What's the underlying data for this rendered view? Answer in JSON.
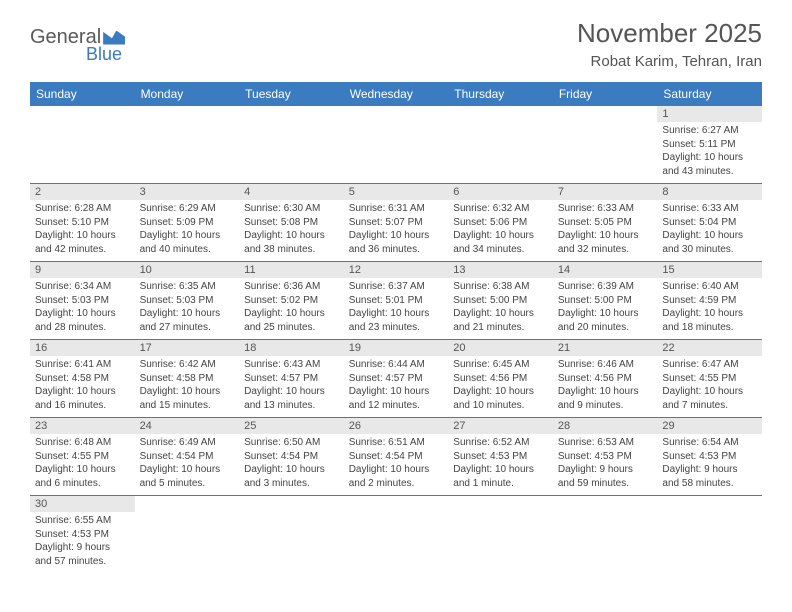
{
  "logo": {
    "part1": "General",
    "part2": "Blue"
  },
  "header": {
    "title": "November 2025",
    "location": "Robat Karim, Tehran, Iran"
  },
  "dayHeaders": [
    "Sunday",
    "Monday",
    "Tuesday",
    "Wednesday",
    "Thursday",
    "Friday",
    "Saturday"
  ],
  "colors": {
    "header_bg": "#3b7bbf",
    "daynum_bg": "#e8e8e8",
    "border": "#3b7bbf",
    "text": "#444444"
  },
  "weeks": [
    {
      "nums": [
        "",
        "",
        "",
        "",
        "",
        "",
        "1"
      ],
      "cells": [
        null,
        null,
        null,
        null,
        null,
        null,
        {
          "sunrise": "Sunrise: 6:27 AM",
          "sunset": "Sunset: 5:11 PM",
          "day1": "Daylight: 10 hours",
          "day2": "and 43 minutes."
        }
      ]
    },
    {
      "nums": [
        "2",
        "3",
        "4",
        "5",
        "6",
        "7",
        "8"
      ],
      "cells": [
        {
          "sunrise": "Sunrise: 6:28 AM",
          "sunset": "Sunset: 5:10 PM",
          "day1": "Daylight: 10 hours",
          "day2": "and 42 minutes."
        },
        {
          "sunrise": "Sunrise: 6:29 AM",
          "sunset": "Sunset: 5:09 PM",
          "day1": "Daylight: 10 hours",
          "day2": "and 40 minutes."
        },
        {
          "sunrise": "Sunrise: 6:30 AM",
          "sunset": "Sunset: 5:08 PM",
          "day1": "Daylight: 10 hours",
          "day2": "and 38 minutes."
        },
        {
          "sunrise": "Sunrise: 6:31 AM",
          "sunset": "Sunset: 5:07 PM",
          "day1": "Daylight: 10 hours",
          "day2": "and 36 minutes."
        },
        {
          "sunrise": "Sunrise: 6:32 AM",
          "sunset": "Sunset: 5:06 PM",
          "day1": "Daylight: 10 hours",
          "day2": "and 34 minutes."
        },
        {
          "sunrise": "Sunrise: 6:33 AM",
          "sunset": "Sunset: 5:05 PM",
          "day1": "Daylight: 10 hours",
          "day2": "and 32 minutes."
        },
        {
          "sunrise": "Sunrise: 6:33 AM",
          "sunset": "Sunset: 5:04 PM",
          "day1": "Daylight: 10 hours",
          "day2": "and 30 minutes."
        }
      ]
    },
    {
      "nums": [
        "9",
        "10",
        "11",
        "12",
        "13",
        "14",
        "15"
      ],
      "cells": [
        {
          "sunrise": "Sunrise: 6:34 AM",
          "sunset": "Sunset: 5:03 PM",
          "day1": "Daylight: 10 hours",
          "day2": "and 28 minutes."
        },
        {
          "sunrise": "Sunrise: 6:35 AM",
          "sunset": "Sunset: 5:03 PM",
          "day1": "Daylight: 10 hours",
          "day2": "and 27 minutes."
        },
        {
          "sunrise": "Sunrise: 6:36 AM",
          "sunset": "Sunset: 5:02 PM",
          "day1": "Daylight: 10 hours",
          "day2": "and 25 minutes."
        },
        {
          "sunrise": "Sunrise: 6:37 AM",
          "sunset": "Sunset: 5:01 PM",
          "day1": "Daylight: 10 hours",
          "day2": "and 23 minutes."
        },
        {
          "sunrise": "Sunrise: 6:38 AM",
          "sunset": "Sunset: 5:00 PM",
          "day1": "Daylight: 10 hours",
          "day2": "and 21 minutes."
        },
        {
          "sunrise": "Sunrise: 6:39 AM",
          "sunset": "Sunset: 5:00 PM",
          "day1": "Daylight: 10 hours",
          "day2": "and 20 minutes."
        },
        {
          "sunrise": "Sunrise: 6:40 AM",
          "sunset": "Sunset: 4:59 PM",
          "day1": "Daylight: 10 hours",
          "day2": "and 18 minutes."
        }
      ]
    },
    {
      "nums": [
        "16",
        "17",
        "18",
        "19",
        "20",
        "21",
        "22"
      ],
      "cells": [
        {
          "sunrise": "Sunrise: 6:41 AM",
          "sunset": "Sunset: 4:58 PM",
          "day1": "Daylight: 10 hours",
          "day2": "and 16 minutes."
        },
        {
          "sunrise": "Sunrise: 6:42 AM",
          "sunset": "Sunset: 4:58 PM",
          "day1": "Daylight: 10 hours",
          "day2": "and 15 minutes."
        },
        {
          "sunrise": "Sunrise: 6:43 AM",
          "sunset": "Sunset: 4:57 PM",
          "day1": "Daylight: 10 hours",
          "day2": "and 13 minutes."
        },
        {
          "sunrise": "Sunrise: 6:44 AM",
          "sunset": "Sunset: 4:57 PM",
          "day1": "Daylight: 10 hours",
          "day2": "and 12 minutes."
        },
        {
          "sunrise": "Sunrise: 6:45 AM",
          "sunset": "Sunset: 4:56 PM",
          "day1": "Daylight: 10 hours",
          "day2": "and 10 minutes."
        },
        {
          "sunrise": "Sunrise: 6:46 AM",
          "sunset": "Sunset: 4:56 PM",
          "day1": "Daylight: 10 hours",
          "day2": "and 9 minutes."
        },
        {
          "sunrise": "Sunrise: 6:47 AM",
          "sunset": "Sunset: 4:55 PM",
          "day1": "Daylight: 10 hours",
          "day2": "and 7 minutes."
        }
      ]
    },
    {
      "nums": [
        "23",
        "24",
        "25",
        "26",
        "27",
        "28",
        "29"
      ],
      "cells": [
        {
          "sunrise": "Sunrise: 6:48 AM",
          "sunset": "Sunset: 4:55 PM",
          "day1": "Daylight: 10 hours",
          "day2": "and 6 minutes."
        },
        {
          "sunrise": "Sunrise: 6:49 AM",
          "sunset": "Sunset: 4:54 PM",
          "day1": "Daylight: 10 hours",
          "day2": "and 5 minutes."
        },
        {
          "sunrise": "Sunrise: 6:50 AM",
          "sunset": "Sunset: 4:54 PM",
          "day1": "Daylight: 10 hours",
          "day2": "and 3 minutes."
        },
        {
          "sunrise": "Sunrise: 6:51 AM",
          "sunset": "Sunset: 4:54 PM",
          "day1": "Daylight: 10 hours",
          "day2": "and 2 minutes."
        },
        {
          "sunrise": "Sunrise: 6:52 AM",
          "sunset": "Sunset: 4:53 PM",
          "day1": "Daylight: 10 hours",
          "day2": "and 1 minute."
        },
        {
          "sunrise": "Sunrise: 6:53 AM",
          "sunset": "Sunset: 4:53 PM",
          "day1": "Daylight: 9 hours",
          "day2": "and 59 minutes."
        },
        {
          "sunrise": "Sunrise: 6:54 AM",
          "sunset": "Sunset: 4:53 PM",
          "day1": "Daylight: 9 hours",
          "day2": "and 58 minutes."
        }
      ]
    },
    {
      "nums": [
        "30",
        "",
        "",
        "",
        "",
        "",
        ""
      ],
      "cells": [
        {
          "sunrise": "Sunrise: 6:55 AM",
          "sunset": "Sunset: 4:53 PM",
          "day1": "Daylight: 9 hours",
          "day2": "and 57 minutes."
        },
        null,
        null,
        null,
        null,
        null,
        null
      ]
    }
  ]
}
